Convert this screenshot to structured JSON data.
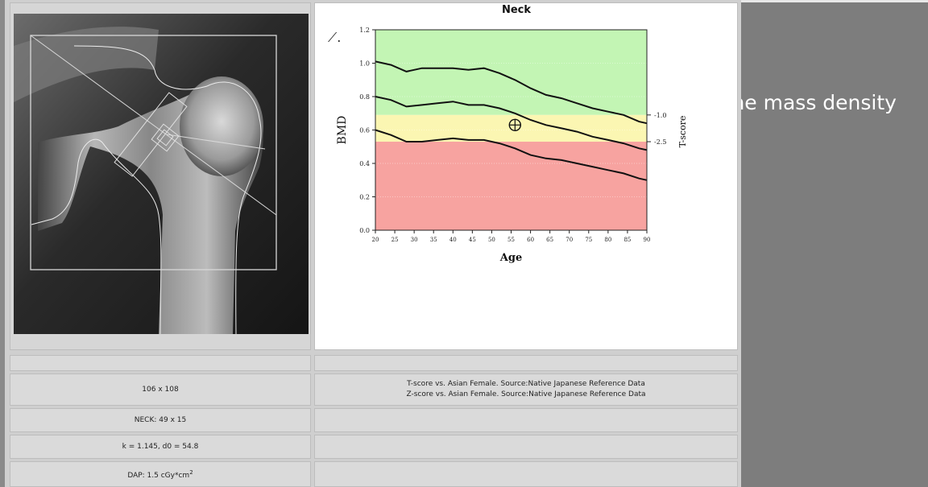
{
  "chart_data": {
    "type": "line",
    "title": "Neck",
    "xlabel": "Age",
    "ylabel": "BMD",
    "y2label": "T-score",
    "xlim": [
      20,
      90
    ],
    "ylim": [
      0.0,
      1.2
    ],
    "x_ticks": [
      "20",
      "25",
      "30",
      "35",
      "40",
      "45",
      "50",
      "55",
      "60",
      "65",
      "70",
      "75",
      "80",
      "85",
      "90"
    ],
    "y_ticks": [
      "0.0",
      "0.2",
      "0.4",
      "0.6",
      "0.8",
      "1.0",
      "1.2"
    ],
    "t_score_ticks": [
      {
        "label": "-1.0",
        "y": 0.69
      },
      {
        "label": "-2.5",
        "y": 0.53
      }
    ],
    "bands": [
      {
        "from": 0.69,
        "to": 1.2,
        "color": "#c3f5b4"
      },
      {
        "from": 0.53,
        "to": 0.69,
        "color": "#fbf6b2"
      },
      {
        "from": 0.0,
        "to": 0.53,
        "color": "#f7a3a0"
      }
    ],
    "x": [
      20,
      24,
      28,
      32,
      36,
      40,
      44,
      48,
      52,
      56,
      60,
      64,
      68,
      72,
      76,
      80,
      84,
      88,
      90
    ],
    "series": [
      {
        "values": [
          1.01,
          0.99,
          0.95,
          0.97,
          0.97,
          0.97,
          0.96,
          0.97,
          0.94,
          0.9,
          0.85,
          0.81,
          0.79,
          0.76,
          0.73,
          0.71,
          0.69,
          0.65,
          0.64
        ]
      },
      {
        "values": [
          0.8,
          0.78,
          0.74,
          0.75,
          0.76,
          0.77,
          0.75,
          0.75,
          0.73,
          0.7,
          0.66,
          0.63,
          0.61,
          0.59,
          0.56,
          0.54,
          0.52,
          0.49,
          0.48
        ]
      },
      {
        "values": [
          0.6,
          0.57,
          0.53,
          0.53,
          0.54,
          0.55,
          0.54,
          0.54,
          0.52,
          0.49,
          0.45,
          0.43,
          0.42,
          0.4,
          0.38,
          0.36,
          0.34,
          0.31,
          0.3
        ]
      }
    ],
    "patient_point": {
      "x": 56,
      "y": 0.63
    }
  },
  "info": {
    "matrix": "106 x 108",
    "reference_line1": "T-score vs. Asian Female. Source:Native Japanese Reference Data",
    "reference_line2": "Z-score vs. Asian Female. Source:Native Japanese Reference Data",
    "neck_roi": "NECK: 49 x 15",
    "calibration": "k = 1.145, d0 = 54.8",
    "dap_prefix": "DAP: 1.5 cGy*cm",
    "dap_exponent": "2"
  },
  "side_caption": "Bone mass density"
}
